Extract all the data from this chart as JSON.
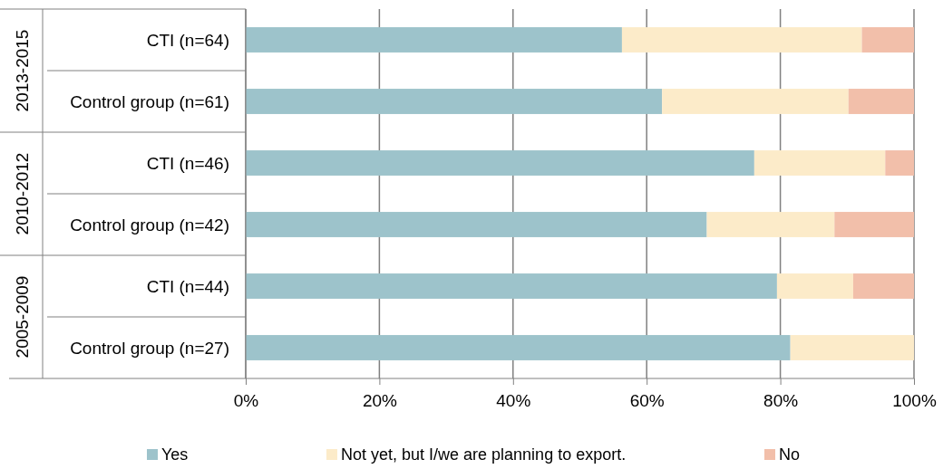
{
  "chart_data": {
    "type": "bar",
    "orientation": "horizontal",
    "stacked": true,
    "categories": [
      "CTI (n=64)",
      "Control group (n=61)",
      "CTI (n=46)",
      "Control group (n=42)",
      "CTI (n=44)",
      "Control group (n=27)"
    ],
    "series": [
      {
        "name": "Yes",
        "color": "#9dc3cb",
        "values": [
          56.3,
          62.3,
          76.1,
          69.0,
          79.5,
          81.5
        ]
      },
      {
        "name": "Not yet, but I/we are planning to export.",
        "color": "#fcebc9",
        "values": [
          35.9,
          27.9,
          19.6,
          19.1,
          11.4,
          18.5
        ]
      },
      {
        "name": "No",
        "color": "#f2bfaa",
        "values": [
          7.8,
          9.8,
          4.3,
          11.9,
          9.1,
          0
        ]
      }
    ],
    "xlim": [
      0,
      100
    ],
    "xticks": [
      {
        "value": 0,
        "label": "0%"
      },
      {
        "value": 20,
        "label": "20%"
      },
      {
        "value": 40,
        "label": "40%"
      },
      {
        "value": 60,
        "label": "60%"
      },
      {
        "value": 80,
        "label": "80%"
      },
      {
        "value": 100,
        "label": "100%"
      }
    ],
    "annotations": [
      "2013-2015",
      "2010-2012",
      "2005-2009"
    ],
    "grid": "x",
    "legend": "bottom"
  }
}
